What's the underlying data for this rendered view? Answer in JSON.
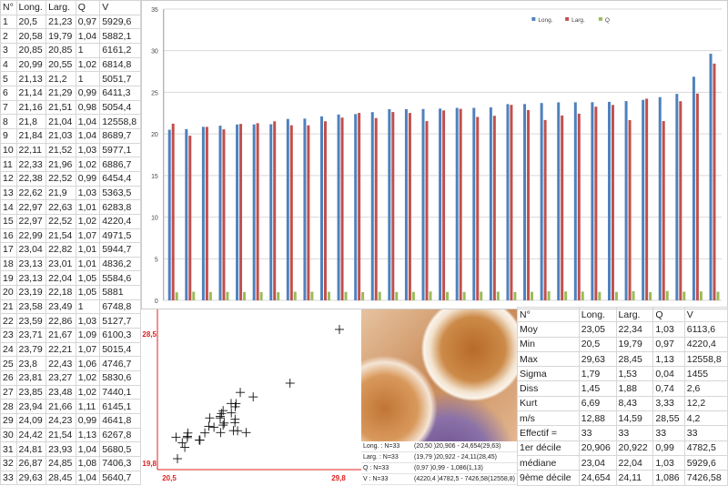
{
  "table": {
    "headers": [
      "N°",
      "Long.",
      "Larg.",
      "Q",
      "V"
    ],
    "rows": [
      [
        "1",
        "20,5",
        "21,23",
        "0,97",
        "5929,6"
      ],
      [
        "2",
        "20,58",
        "19,79",
        "1,04",
        "5882,1"
      ],
      [
        "3",
        "20,85",
        "20,85",
        "1",
        "6161,2"
      ],
      [
        "4",
        "20,99",
        "20,55",
        "1,02",
        "6814,8"
      ],
      [
        "5",
        "21,13",
        "21,2",
        "1",
        "5051,7"
      ],
      [
        "6",
        "21,14",
        "21,29",
        "0,99",
        "6411,3"
      ],
      [
        "7",
        "21,16",
        "21,51",
        "0,98",
        "5054,4"
      ],
      [
        "8",
        "21,8",
        "21,04",
        "1,04",
        "12558,8"
      ],
      [
        "9",
        "21,84",
        "21,03",
        "1,04",
        "8689,7"
      ],
      [
        "10",
        "22,11",
        "21,52",
        "1,03",
        "5977,1"
      ],
      [
        "11",
        "22,33",
        "21,96",
        "1,02",
        "6886,7"
      ],
      [
        "12",
        "22,38",
        "22,52",
        "0,99",
        "6454,4"
      ],
      [
        "13",
        "22,62",
        "21,9",
        "1,03",
        "5363,5"
      ],
      [
        "14",
        "22,97",
        "22,63",
        "1,01",
        "6283,8"
      ],
      [
        "15",
        "22,97",
        "22,52",
        "1,02",
        "4220,4"
      ],
      [
        "16",
        "22,99",
        "21,54",
        "1,07",
        "4971,5"
      ],
      [
        "17",
        "23,04",
        "22,82",
        "1,01",
        "5944,7"
      ],
      [
        "18",
        "23,13",
        "23,01",
        "1,01",
        "4836,2"
      ],
      [
        "19",
        "23,13",
        "22,04",
        "1,05",
        "5584,6"
      ],
      [
        "20",
        "23,19",
        "22,18",
        "1,05",
        "5881"
      ],
      [
        "21",
        "23,58",
        "23,49",
        "1",
        "6748,8"
      ],
      [
        "22",
        "23,59",
        "22,86",
        "1,03",
        "5127,7"
      ],
      [
        "23",
        "23,71",
        "21,67",
        "1,09",
        "6100,3"
      ],
      [
        "24",
        "23,79",
        "22,21",
        "1,07",
        "5015,4"
      ],
      [
        "25",
        "23,8",
        "22,43",
        "1,06",
        "4746,7"
      ],
      [
        "26",
        "23,81",
        "23,27",
        "1,02",
        "5830,6"
      ],
      [
        "27",
        "23,85",
        "23,48",
        "1,02",
        "7440,1"
      ],
      [
        "28",
        "23,94",
        "21,66",
        "1,11",
        "6145,1"
      ],
      [
        "29",
        "24,09",
        "24,23",
        "0,99",
        "4641,8"
      ],
      [
        "30",
        "24,42",
        "21,54",
        "1,13",
        "6267,8"
      ],
      [
        "31",
        "24,81",
        "23,93",
        "1,04",
        "5680,5"
      ],
      [
        "32",
        "26,87",
        "24,85",
        "1,08",
        "7406,3"
      ],
      [
        "33",
        "29,63",
        "28,45",
        "1,04",
        "5640,7"
      ]
    ]
  },
  "stats": {
    "headers": [
      "N°",
      "Long.",
      "Larg.",
      "Q",
      "V"
    ],
    "rows": [
      [
        "Moy",
        "23,05",
        "22,34",
        "1,03",
        "6113,6"
      ],
      [
        "Min",
        "20,5",
        "19,79",
        "0,97",
        "4220,4"
      ],
      [
        "Max",
        "29,63",
        "28,45",
        "1,13",
        "12558,8"
      ],
      [
        "Sigma",
        "1,79",
        "1,53",
        "0,04",
        "1455"
      ],
      [
        "Diss",
        "1,45",
        "1,88",
        "0,74",
        "2,6"
      ],
      [
        "Kurt",
        "6,69",
        "8,43",
        "3,33",
        "12,2"
      ],
      [
        "m/s",
        "12,88",
        "14,59",
        "28,55",
        "4,2"
      ],
      [
        "Effectif =",
        "33",
        "33",
        "33",
        "33"
      ],
      [
        "1er décile",
        "20,906",
        "20,922",
        "0,99",
        "4782,5"
      ],
      [
        "médiane",
        "23,04",
        "22,04",
        "1,03",
        "5929,6"
      ],
      [
        "9ème décile",
        "24,654",
        "24,11",
        "1,086",
        "7426,58"
      ]
    ]
  },
  "summary": [
    [
      "Long. : N=33",
      "(20,50 )20,906 - 24,654(29,63)"
    ],
    [
      "Larg. : N=33",
      "(19,79 )20,922 - 24,11(28,45)"
    ],
    [
      "Q : N=33",
      "(0,97 )0,99 - 1,086(1,13)"
    ],
    [
      "V : N=33",
      "(4220,4 )4782,5 - 7426,58(12558,8)"
    ]
  ],
  "chart_data": [
    {
      "type": "bar",
      "ylim": [
        0,
        35
      ],
      "yticks": [
        "0",
        "5",
        "10",
        "15",
        "20",
        "25",
        "30",
        "35"
      ],
      "legend": "top-right",
      "series": [
        {
          "name": "Long.",
          "color": "#4f81bd"
        },
        {
          "name": "Larg.",
          "color": "#c0504d"
        },
        {
          "name": "Q",
          "color": "#9bbb59"
        }
      ],
      "source": "table.rows columns 1-3"
    },
    {
      "type": "scatter",
      "x_label_min": "20,5",
      "x_label_max": "29,8",
      "y_label_min": "19,8",
      "y_label_max": "28,5",
      "xlim": [
        20.5,
        29.8
      ],
      "ylim": [
        19.8,
        28.5
      ],
      "axis_color": "#e02020",
      "source": "Long. vs Larg."
    }
  ]
}
